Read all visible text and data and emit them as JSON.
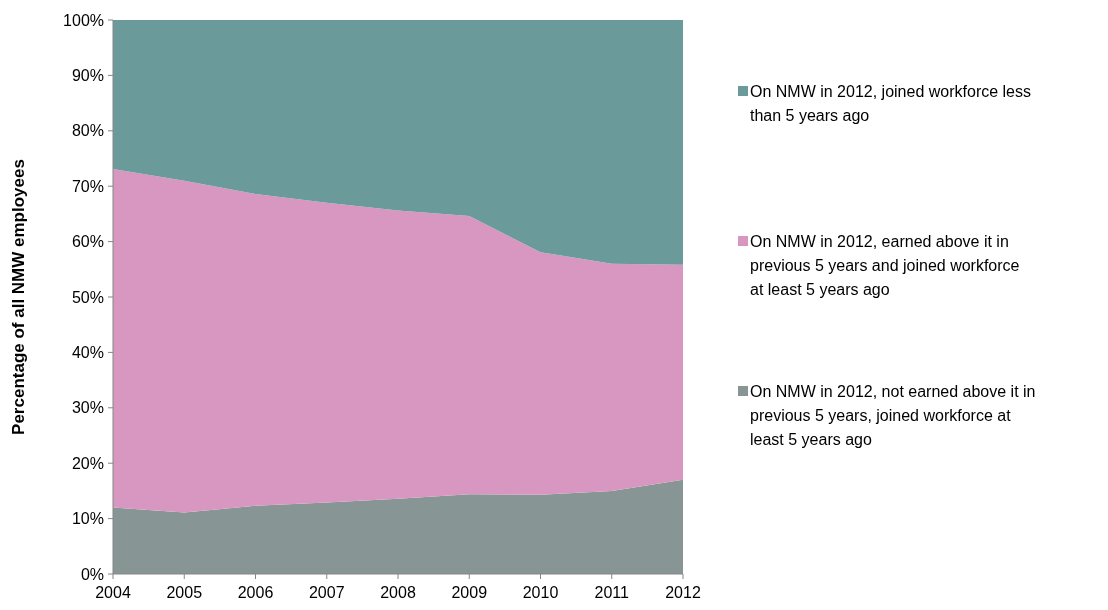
{
  "chart_data": {
    "type": "area",
    "stacked": true,
    "ylabel": "Percentage of all NMW employees",
    "x": [
      2004,
      2005,
      2006,
      2007,
      2008,
      2009,
      2010,
      2011,
      2012
    ],
    "xlim": [
      2004,
      2012
    ],
    "xticks": [
      2004,
      2005,
      2006,
      2007,
      2008,
      2009,
      2010,
      2011,
      2012
    ],
    "ylim": [
      0,
      100
    ],
    "yticks": [
      {
        "value": 0,
        "label": "0%"
      },
      {
        "value": 10,
        "label": "10%"
      },
      {
        "value": 20,
        "label": "20%"
      },
      {
        "value": 30,
        "label": "30%"
      },
      {
        "value": 40,
        "label": "40%"
      },
      {
        "value": 50,
        "label": "50%"
      },
      {
        "value": 60,
        "label": "60%"
      },
      {
        "value": 70,
        "label": "70%"
      },
      {
        "value": 80,
        "label": "80%"
      },
      {
        "value": 90,
        "label": "90%"
      },
      {
        "value": 100,
        "label": "100%"
      }
    ],
    "legend": "right",
    "grid": false,
    "series": [
      {
        "name": "On NMW in 2012, not earned above it in previous 5 years, joined workforce at least 5 years ago",
        "color": "#879594",
        "values": [
          12.0,
          11.1,
          12.3,
          12.9,
          13.6,
          14.4,
          14.3,
          15.0,
          17.0
        ]
      },
      {
        "name": "On NMW in 2012, earned above it in previous 5 years and joined workforce at least 5 years ago",
        "color": "#d797c1",
        "values": [
          61.1,
          59.9,
          56.3,
          54.1,
          52.0,
          50.2,
          43.8,
          41.0,
          38.8
        ]
      },
      {
        "name": "On NMW in 2012, joined workforce less than 5 years ago",
        "color": "#6a9a99",
        "values": [
          26.9,
          29.0,
          31.4,
          33.0,
          34.4,
          35.4,
          41.9,
          44.0,
          44.2
        ]
      }
    ]
  }
}
